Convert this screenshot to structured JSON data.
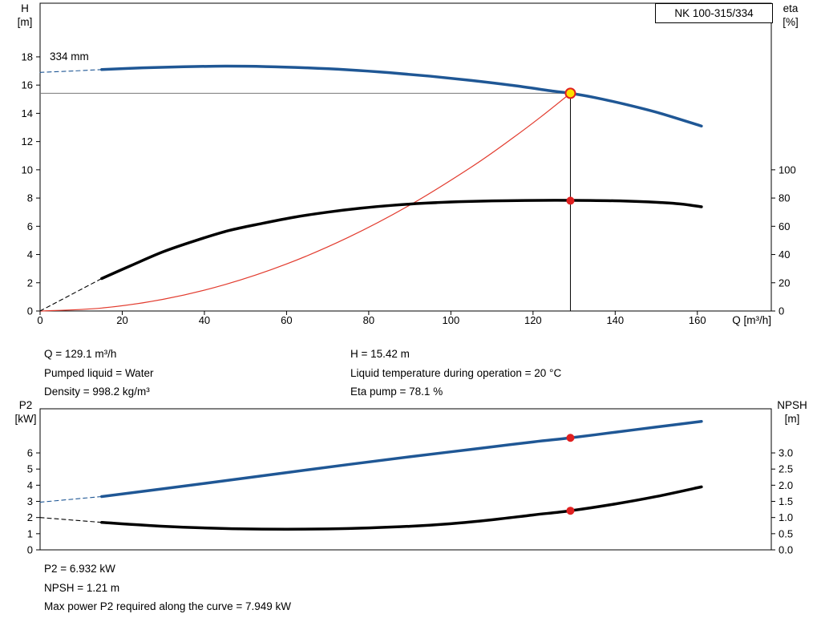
{
  "pump_model": "NK 100-315/334",
  "results_top": {
    "q": "Q = 129.1 m³/h",
    "pumped_liquid": "Pumped liquid = Water",
    "density": "Density = 998.2 kg/m³",
    "h": "H = 15.42 m",
    "liquid_temp": "Liquid temperature during operation = 20 °C",
    "eta_pump": "Eta pump = 78.1 %"
  },
  "results_bottom": {
    "p2": "P2 = 6.932 kW",
    "npsh": "NPSH = 1.21 m",
    "max_power": "Max power P2 required along the curve = 7.949 kW"
  },
  "duty_point": {
    "q_m3h": 129.1,
    "h_m": 15.42,
    "eta_pct": 78.1,
    "p2_kw": 6.932,
    "npsh_m": 1.21
  },
  "colors": {
    "curve_blue": "#1f5795",
    "curve_black": "#000000",
    "system_red": "#e23b2e",
    "marker_red": "#e02020",
    "marker_yellow": "#ffdf00",
    "ref_gray": "#777777",
    "frame": "#000000"
  },
  "chart_data": [
    {
      "type": "line",
      "title": "Pump head and efficiency curves",
      "x_axis": {
        "label": "Q [m³/h]",
        "min": 0,
        "max": 178,
        "ticks": [
          0,
          20,
          40,
          60,
          80,
          100,
          120,
          140,
          160
        ]
      },
      "y_left": {
        "label": [
          "H",
          "[m]"
        ],
        "min": 0,
        "max": 21.8,
        "ticks": [
          0,
          2,
          4,
          6,
          8,
          10,
          12,
          14,
          16,
          18
        ]
      },
      "y_right": {
        "label": [
          "eta",
          "[%]"
        ],
        "min": 0,
        "max": 218,
        "ticks": [
          0,
          20,
          40,
          60,
          80,
          100
        ]
      },
      "annotations": [
        {
          "text": "334 mm"
        }
      ],
      "series": [
        {
          "name": "system-curve",
          "axis": "left",
          "color": "#e23b2e",
          "width": 1.2,
          "dash": false,
          "points": [
            [
              0,
              0
            ],
            [
              15,
              0.21
            ],
            [
              30,
              0.83
            ],
            [
              45,
              1.87
            ],
            [
              60,
              3.33
            ],
            [
              75,
              5.21
            ],
            [
              90,
              7.5
            ],
            [
              105,
              10.2
            ],
            [
              115,
              12.24
            ],
            [
              122,
              13.77
            ],
            [
              129.1,
              15.42
            ]
          ]
        },
        {
          "name": "eta-curve-extension",
          "axis": "right",
          "color": "#000000",
          "width": 1.1,
          "dash": true,
          "points": [
            [
              0,
              0
            ],
            [
              15,
              23
            ]
          ]
        },
        {
          "name": "eta-curve",
          "axis": "right",
          "color": "#000000",
          "width": 3.5,
          "dash": false,
          "points": [
            [
              15,
              23
            ],
            [
              22,
              32
            ],
            [
              30,
              42
            ],
            [
              38,
              50
            ],
            [
              46,
              57
            ],
            [
              54,
              62
            ],
            [
              62,
              66.5
            ],
            [
              70,
              70
            ],
            [
              78,
              72.8
            ],
            [
              86,
              74.9
            ],
            [
              94,
              76.4
            ],
            [
              102,
              77.4
            ],
            [
              110,
              78.0
            ],
            [
              118,
              78.3
            ],
            [
              126,
              78.4
            ],
            [
              134,
              78.3
            ],
            [
              142,
              77.9
            ],
            [
              150,
              77.0
            ],
            [
              156,
              75.8
            ],
            [
              161,
              73.8
            ]
          ]
        },
        {
          "name": "head-curve-extension",
          "axis": "left",
          "color": "#1f5795",
          "width": 1.1,
          "dash": true,
          "points": [
            [
              0,
              16.9
            ],
            [
              8,
              17.0
            ],
            [
              15,
              17.1
            ]
          ]
        },
        {
          "name": "head-curve-334mm",
          "axis": "left",
          "color": "#1f5795",
          "width": 3.5,
          "dash": false,
          "points": [
            [
              15,
              17.1
            ],
            [
              25,
              17.22
            ],
            [
              35,
              17.3
            ],
            [
              45,
              17.34
            ],
            [
              55,
              17.31
            ],
            [
              65,
              17.22
            ],
            [
              75,
              17.08
            ],
            [
              85,
              16.88
            ],
            [
              95,
              16.63
            ],
            [
              105,
              16.33
            ],
            [
              115,
              15.98
            ],
            [
              125,
              15.57
            ],
            [
              129.1,
              15.42
            ],
            [
              135,
              15.12
            ],
            [
              143,
              14.6
            ],
            [
              151,
              14.0
            ],
            [
              161,
              13.1
            ]
          ]
        }
      ],
      "ref_lines": [
        {
          "name": "duty-horizontal-line",
          "axis": "left",
          "color": "#777777",
          "width": 1,
          "from": [
            0,
            15.42
          ],
          "to": [
            129.1,
            15.42
          ]
        },
        {
          "name": "duty-vertical-line",
          "axis": "left",
          "color": "#000000",
          "width": 1,
          "from": [
            129.1,
            0
          ],
          "to": [
            129.1,
            15.42
          ]
        }
      ],
      "markers": [
        {
          "name": "duty-point-marker",
          "axis": "left",
          "x": 129.1,
          "y": 15.42,
          "r": 6,
          "fill": "#ffdf00",
          "stroke": "#e02020",
          "stroke_width": 2
        },
        {
          "name": "eta-point-marker",
          "axis": "right",
          "x": 129.1,
          "y": 78.1,
          "r": 5,
          "fill": "#e02020",
          "stroke": "none",
          "stroke_width": 0
        }
      ]
    },
    {
      "type": "line",
      "title": "Power and NPSH curves",
      "x_axis": {
        "label": "",
        "min": 0,
        "max": 178,
        "ticks": []
      },
      "y_left": {
        "label": [
          "P2",
          "[kW]"
        ],
        "min": 0,
        "max": 8.73,
        "ticks": [
          0,
          1,
          2,
          3,
          4,
          5,
          6
        ]
      },
      "y_right": {
        "label": [
          "NPSH",
          "[m]"
        ],
        "min": 0,
        "max": 4.365,
        "ticks": [
          "0.0",
          "0.5",
          "1.0",
          "1.5",
          "2.0",
          "2.5",
          "3.0"
        ]
      },
      "annotations": [],
      "series": [
        {
          "name": "npsh-curve-extension",
          "axis": "right",
          "color": "#000000",
          "width": 1.1,
          "dash": true,
          "points": [
            [
              0,
              1.0
            ],
            [
              15,
              0.85
            ]
          ]
        },
        {
          "name": "npsh-curve",
          "axis": "right",
          "color": "#000000",
          "width": 3.5,
          "dash": false,
          "points": [
            [
              15,
              0.85
            ],
            [
              30,
              0.73
            ],
            [
              45,
              0.66
            ],
            [
              60,
              0.64
            ],
            [
              75,
              0.66
            ],
            [
              90,
              0.73
            ],
            [
              100,
              0.81
            ],
            [
              110,
              0.93
            ],
            [
              120,
              1.08
            ],
            [
              129.1,
              1.21
            ],
            [
              140,
              1.42
            ],
            [
              150,
              1.65
            ],
            [
              161,
              1.95
            ]
          ]
        },
        {
          "name": "p2-curve-extension",
          "axis": "left",
          "color": "#1f5795",
          "width": 1.1,
          "dash": true,
          "points": [
            [
              0,
              2.95
            ],
            [
              15,
              3.3
            ]
          ]
        },
        {
          "name": "p2-curve",
          "axis": "left",
          "color": "#1f5795",
          "width": 3.5,
          "dash": false,
          "points": [
            [
              15,
              3.3
            ],
            [
              30,
              3.78
            ],
            [
              45,
              4.28
            ],
            [
              60,
              4.78
            ],
            [
              75,
              5.28
            ],
            [
              90,
              5.76
            ],
            [
              105,
              6.22
            ],
            [
              120,
              6.68
            ],
            [
              129.1,
              6.93
            ],
            [
              140,
              7.28
            ],
            [
              150,
              7.6
            ],
            [
              161,
              7.95
            ]
          ]
        }
      ],
      "ref_lines": [],
      "markers": [
        {
          "name": "p2-point-marker",
          "axis": "left",
          "x": 129.1,
          "y": 6.932,
          "r": 5,
          "fill": "#e02020",
          "stroke": "none",
          "stroke_width": 0
        },
        {
          "name": "npsh-point-marker",
          "axis": "right",
          "x": 129.1,
          "y": 1.21,
          "r": 5,
          "fill": "#e02020",
          "stroke": "none",
          "stroke_width": 0
        }
      ]
    }
  ]
}
